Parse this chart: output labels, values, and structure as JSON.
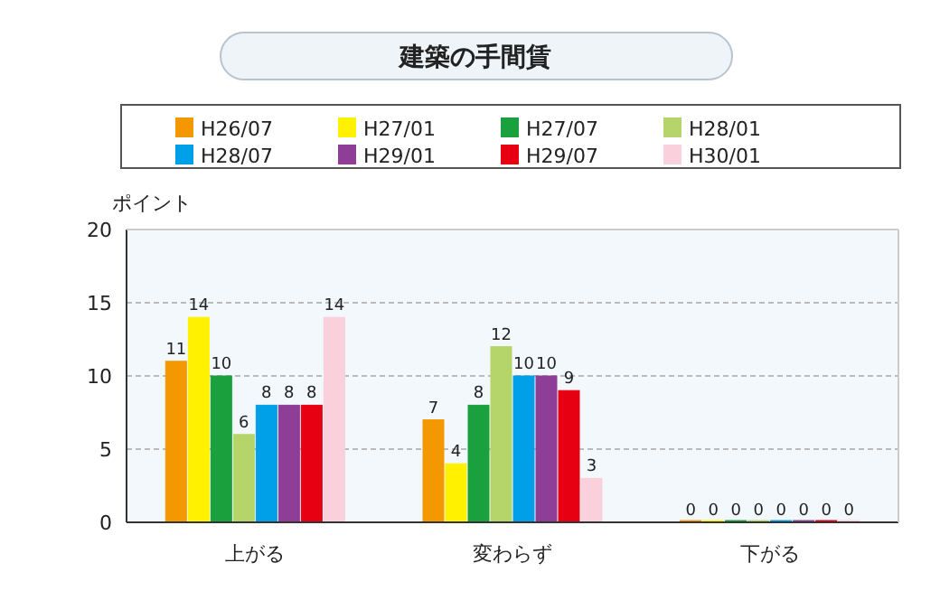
{
  "chart_data": {
    "type": "bar",
    "title": "建築の手間賃",
    "ylabel": "ポイント",
    "categories": [
      "上がる",
      "変わらず",
      "下がる"
    ],
    "series": [
      {
        "name": "H26/07",
        "color": "#f39800",
        "values": [
          11,
          7,
          0
        ]
      },
      {
        "name": "H27/01",
        "color": "#fff100",
        "values": [
          14,
          4,
          0
        ]
      },
      {
        "name": "H27/07",
        "color": "#1aa03c",
        "values": [
          10,
          8,
          0
        ]
      },
      {
        "name": "H28/01",
        "color": "#b5d56a",
        "values": [
          6,
          12,
          0
        ]
      },
      {
        "name": "H28/07",
        "color": "#00a0e9",
        "values": [
          8,
          10,
          0
        ]
      },
      {
        "name": "H29/01",
        "color": "#8e3e97",
        "values": [
          8,
          10,
          0
        ]
      },
      {
        "name": "H29/07",
        "color": "#e60012",
        "values": [
          8,
          9,
          0
        ]
      },
      {
        "name": "H30/01",
        "color": "#f9d0dc",
        "values": [
          14,
          3,
          0
        ]
      }
    ],
    "ylim": [
      0,
      20
    ],
    "yticks": [
      0,
      5,
      10,
      15,
      20
    ],
    "grid": "y",
    "legend": "top",
    "data_labels": true
  }
}
